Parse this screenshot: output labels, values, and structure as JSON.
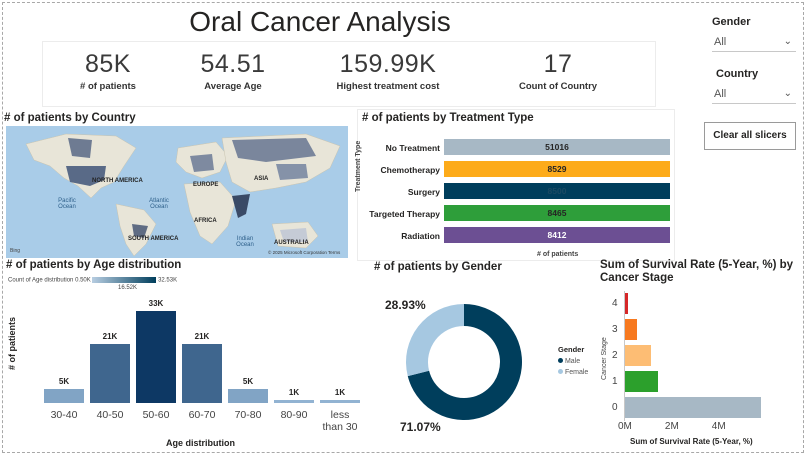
{
  "title": "Oral Cancer Analysis",
  "kpis": [
    {
      "value": "85K",
      "label": "# of patients"
    },
    {
      "value": "54.51",
      "label": "Average Age"
    },
    {
      "value": "159.99K",
      "label": "Highest treatment cost"
    },
    {
      "value": "17",
      "label": "Count of Country"
    }
  ],
  "slicers": {
    "gender": {
      "label": "Gender",
      "value": "All"
    },
    "country": {
      "label": "Country",
      "value": "All"
    },
    "clear_label": "Clear all slicers"
  },
  "map": {
    "title": "# of patients by Country",
    "labels": [
      "NORTH AMERICA",
      "EUROPE",
      "ASIA",
      "AFRICA",
      "SOUTH AMERICA",
      "AUSTRALIA"
    ],
    "oceans": [
      "Pacific Ocean",
      "Atlantic Ocean",
      "Indian Ocean"
    ],
    "bing": "Bing",
    "copyright": "© 2025 Microsoft Corporation",
    "terms": "Terms"
  },
  "colors": {
    "navy": "#003e5c",
    "mid_blue": "#29537f",
    "light_blue": "#94b5d4",
    "grey": "#a7b8c5",
    "orange": "#fdab1a",
    "green": "#2e9e3a",
    "purple": "#6c4f93",
    "red": "#d62728",
    "deep_orange": "#f7791f",
    "peach": "#fdbd74",
    "bright_green": "#2ca02c",
    "gender_male": "#003e5c",
    "gender_female": "#a6c8e1"
  },
  "chart_data": [
    {
      "type": "bar",
      "orientation": "horizontal",
      "title": "# of patients by Treatment Type",
      "xlabel": "# of patients",
      "ylabel": "Treatment Type",
      "categories": [
        "No Treatment",
        "Chemotherapy",
        "Surgery",
        "Targeted Therapy",
        "Radiation"
      ],
      "values": [
        51016,
        8529,
        8500,
        8465,
        8412
      ],
      "labels": [
        "51016",
        "8529",
        "8500",
        "8465",
        "8412"
      ]
    },
    {
      "type": "bar",
      "title": "# of patients by Age distribution",
      "xlabel": "Age distribution",
      "ylabel": "# of patients",
      "legend_title": "Count of Age distribution",
      "legend_min": "0.50K",
      "legend_max": "32.53K",
      "legend_mid": "16.52K",
      "categories": [
        "30-40",
        "40-50",
        "50-60",
        "60-70",
        "70-80",
        "80-90",
        "less than 30"
      ],
      "values": [
        5,
        21,
        33,
        21,
        5,
        1,
        1
      ],
      "labels": [
        "5K",
        "21K",
        "33K",
        "21K",
        "5K",
        "1K",
        "1K"
      ]
    },
    {
      "type": "pie",
      "donut": true,
      "title": "# of patients by Gender",
      "legend_title": "Gender",
      "categories": [
        "Male",
        "Female"
      ],
      "values": [
        71.07,
        28.93
      ],
      "labels": [
        "71.07%",
        "28.93%"
      ]
    },
    {
      "type": "bar",
      "orientation": "horizontal",
      "title_line1": "Sum of Survival Rate (5-Year, %) by",
      "title_line2": "Cancer Stage",
      "xlabel": "Sum of Survival Rate (5-Year, %)",
      "ylabel": "Cancer Stage",
      "categories": [
        "4",
        "3",
        "2",
        "1",
        "0"
      ],
      "values": [
        0.12,
        0.5,
        1.1,
        1.4,
        5.8
      ],
      "unit": "M",
      "xlim": [
        0,
        5.8
      ],
      "xticks": [
        "0M",
        "2M",
        "4M"
      ],
      "xtick_values": [
        0,
        2,
        4
      ]
    }
  ]
}
